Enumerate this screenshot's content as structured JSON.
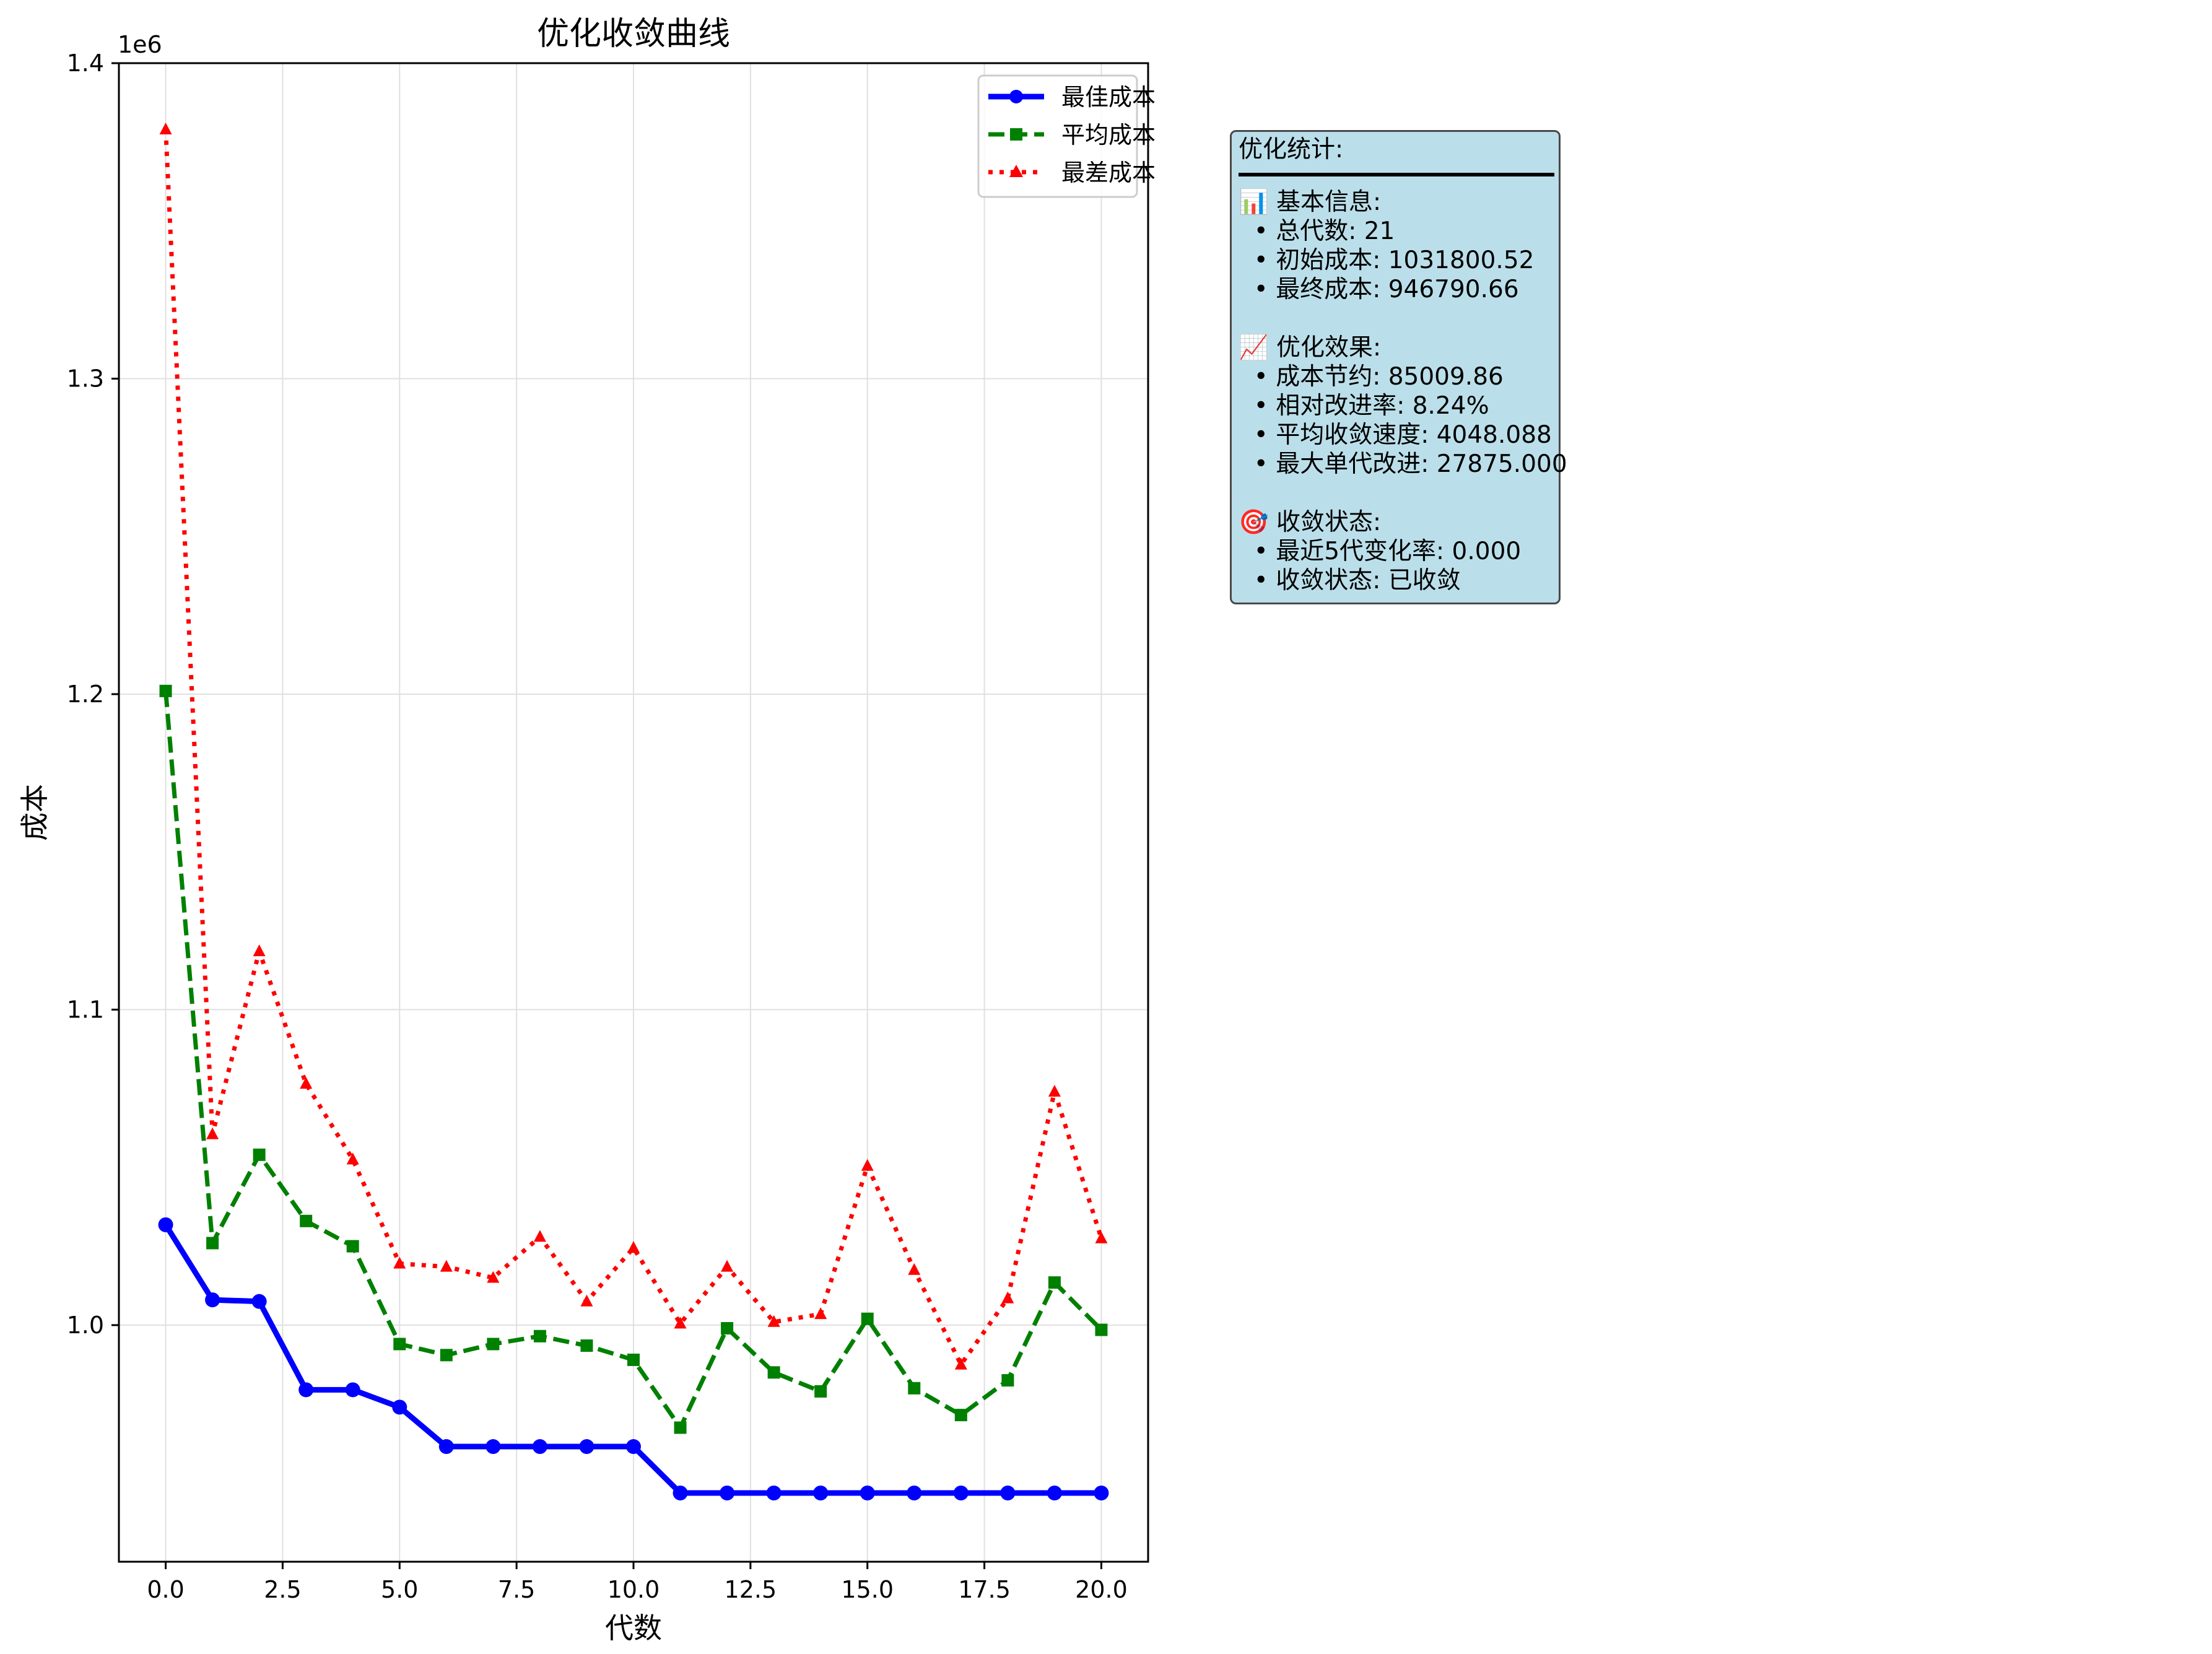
{
  "chart_data": {
    "type": "line",
    "title": "优化收敛曲线",
    "xlabel": "代数",
    "ylabel": "成本",
    "y_offset_label": "1e6",
    "xlim": [
      -1,
      21
    ],
    "ylim": [
      925000,
      1400000
    ],
    "x_ticks": [
      0.0,
      2.5,
      5.0,
      7.5,
      10.0,
      12.5,
      15.0,
      17.5,
      20.0
    ],
    "x_tick_labels": [
      "0.0",
      "2.5",
      "5.0",
      "7.5",
      "10.0",
      "12.5",
      "15.0",
      "17.5",
      "20.0"
    ],
    "y_ticks": [
      1000000,
      1100000,
      1200000,
      1300000,
      1400000
    ],
    "y_tick_labels": [
      "1.0",
      "1.1",
      "1.2",
      "1.3",
      "1.4"
    ],
    "grid": true,
    "legend_position": "top-right",
    "x": [
      0,
      1,
      2,
      3,
      4,
      5,
      6,
      7,
      8,
      9,
      10,
      11,
      12,
      13,
      14,
      15,
      16,
      17,
      18,
      19,
      20
    ],
    "series": [
      {
        "name": "最佳成本",
        "color": "#0000ff",
        "style": "solid",
        "marker": "circle",
        "values": [
          1031800,
          1008000,
          1007500,
          979500,
          979500,
          974000,
          961500,
          961500,
          961500,
          961500,
          961500,
          946790,
          946790,
          946790,
          946790,
          946790,
          946790,
          946790,
          946790,
          946790,
          946790
        ]
      },
      {
        "name": "平均成本",
        "color": "#008000",
        "style": "dashed",
        "marker": "square",
        "values": [
          1201000,
          1026000,
          1054000,
          1033000,
          1025000,
          994000,
          990500,
          994000,
          996500,
          993500,
          989000,
          967500,
          999000,
          985000,
          979000,
          1002000,
          980000,
          971500,
          982500,
          1013500,
          998500
        ]
      },
      {
        "name": "最差成本",
        "color": "#ff0000",
        "style": "dotted",
        "marker": "triangle",
        "values": [
          1379000,
          1060500,
          1118500,
          1076500,
          1052500,
          1019500,
          1018500,
          1015000,
          1028000,
          1007500,
          1024500,
          1000500,
          1018500,
          1001000,
          1003500,
          1050500,
          1017500,
          987500,
          1008500,
          1074000,
          1027500
        ]
      }
    ]
  },
  "info_panel": {
    "title": "优化统计:",
    "section1_title": "📊 基本信息:",
    "s1_item1": "  • 总代数: 21",
    "s1_item2": "  • 初始成本: 1031800.52",
    "s1_item3": "  • 最终成本: 946790.66",
    "section2_title": "📈 优化效果:",
    "s2_item1": "  • 成本节约: 85009.86",
    "s2_item2": "  • 相对改进率: 8.24%",
    "s2_item3": "  • 平均收敛速度: 4048.088",
    "s2_item4": "  • 最大单代改进: 27875.000",
    "section3_title": "🎯 收敛状态:",
    "s3_item1": "  • 最近5代变化率: 0.000",
    "s3_item2": "  • 收敛状态: 已收敛"
  }
}
